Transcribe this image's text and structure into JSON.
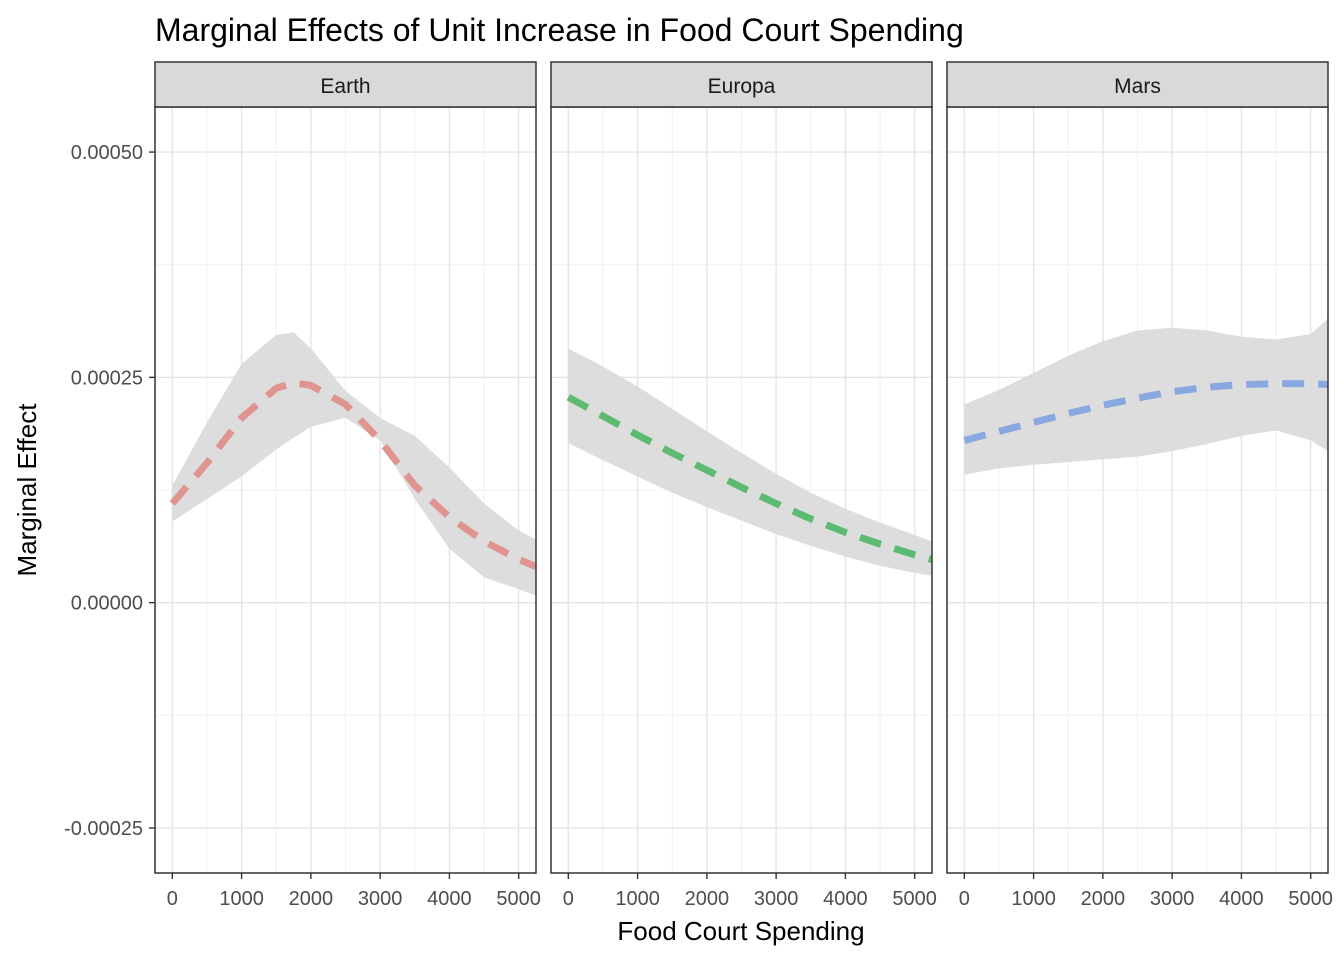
{
  "chart_data": {
    "type": "line",
    "title": "Marginal Effects of Unit Increase in Food Court Spending",
    "xlabel": "Food Court Spending",
    "ylabel": "Marginal Effect",
    "xlim": [
      -250,
      5250
    ],
    "ylim": [
      -0.0003,
      0.00055
    ],
    "x_ticks": [
      0,
      1000,
      2000,
      3000,
      4000,
      5000
    ],
    "x_tick_labels": [
      "0",
      "1000",
      "2000",
      "3000",
      "4000",
      "5000"
    ],
    "y_ticks": [
      0.0005,
      0.00025,
      0.0,
      -0.00025
    ],
    "y_tick_labels": [
      "0.00050",
      "0.00025",
      "0.00000",
      "-0.00025"
    ],
    "grid": true,
    "line_style": "dashed",
    "band": "confidence interval (grey ribbon)",
    "panels": [
      {
        "strip": "Earth",
        "color": "#e0948f",
        "x": [
          0,
          500,
          1000,
          1500,
          1750,
          2000,
          2500,
          3000,
          3500,
          4000,
          4500,
          5000,
          5250
        ],
        "y": [
          0.00011,
          0.000155,
          0.000205,
          0.000238,
          0.000244,
          0.000241,
          0.00022,
          0.00018,
          0.00013,
          9.5e-05,
          6.8e-05,
          4.8e-05,
          4e-05
        ],
        "lower": [
          9e-05,
          0.000115,
          0.00014,
          0.00017,
          0.000183,
          0.000195,
          0.000205,
          0.00018,
          0.000115,
          6e-05,
          2.8e-05,
          1.5e-05,
          8e-06
        ],
        "upper": [
          0.00013,
          0.0002,
          0.000265,
          0.000297,
          0.0003,
          0.000282,
          0.000235,
          0.000205,
          0.000185,
          0.00015,
          0.00011,
          8e-05,
          7e-05
        ]
      },
      {
        "strip": "Europa",
        "color": "#5dbb71",
        "x": [
          0,
          500,
          1000,
          1500,
          2000,
          2500,
          3000,
          3500,
          4000,
          4500,
          5000,
          5250
        ],
        "y": [
          0.000228,
          0.000207,
          0.000186,
          0.000166,
          0.000147,
          0.000128,
          0.00011,
          9.3e-05,
          7.8e-05,
          6.5e-05,
          5.3e-05,
          4.8e-05
        ],
        "lower": [
          0.000177,
          0.000158,
          0.00014,
          0.000122,
          0.000106,
          9.1e-05,
          7.6e-05,
          6.3e-05,
          5.1e-05,
          4.1e-05,
          3.3e-05,
          3e-05
        ],
        "upper": [
          0.000282,
          0.000262,
          0.00024,
          0.000215,
          0.00019,
          0.000166,
          0.000143,
          0.000122,
          0.000104,
          8.9e-05,
          7.5e-05,
          6.8e-05
        ]
      },
      {
        "strip": "Mars",
        "color": "#89a8e0",
        "x": [
          0,
          500,
          1000,
          1500,
          2000,
          2500,
          3000,
          3500,
          4000,
          4500,
          5000,
          5250
        ],
        "y": [
          0.00018,
          0.00019,
          0.0002,
          0.00021,
          0.000219,
          0.000227,
          0.000234,
          0.000239,
          0.000242,
          0.000243,
          0.000243,
          0.000242
        ],
        "lower": [
          0.000142,
          0.000149,
          0.000153,
          0.000156,
          0.000159,
          0.000162,
          0.000168,
          0.000176,
          0.000185,
          0.000191,
          0.00018,
          0.000168
        ],
        "upper": [
          0.00022,
          0.000236,
          0.000255,
          0.000274,
          0.00029,
          0.000302,
          0.000305,
          0.000302,
          0.000295,
          0.000292,
          0.000298,
          0.000315
        ]
      }
    ]
  }
}
